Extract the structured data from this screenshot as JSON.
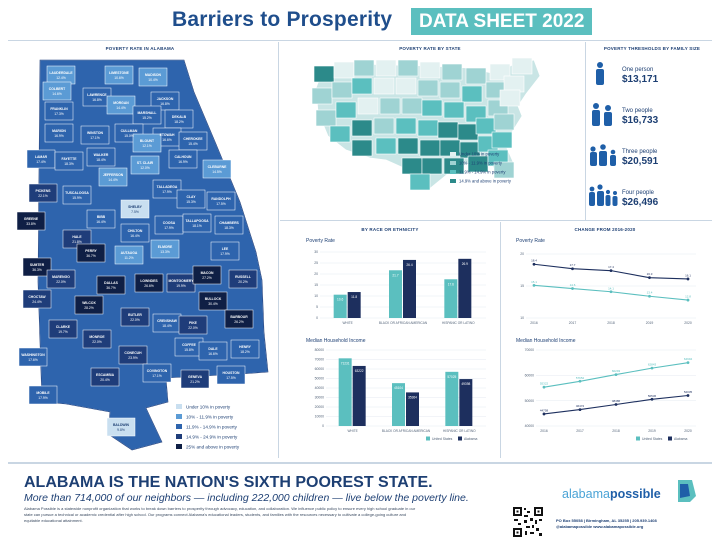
{
  "header": {
    "title": "Barriers to Prosperity",
    "badge": "DATA SHEET 2022"
  },
  "panels": {
    "county_map_title": "POVERTY RATE IN ALABAMA",
    "state_map_title": "POVERTY RATE BY STATE",
    "thresholds_title": "POVERTY THRESHOLDS BY FAMILY SIZE",
    "race_title": "BY RACE OR ETHNICITY",
    "change_title": "CHANGE FROM 2016-2020"
  },
  "legend_alabama": [
    "Under 10% in poverty",
    "10% - 11.9% in poverty",
    "11.9% - 14.9% in poverty",
    "14.9% - 24.9% in poverty",
    "25% and above in poverty"
  ],
  "legend_states": [
    "Under 10% in poverty",
    "10% - 11.9% in poverty",
    "11.9% - 14.9% in poverty",
    "14.9% and above in poverty"
  ],
  "colors": {
    "c1": "#c9dff0",
    "c2": "#5b9bd5",
    "c3": "#2e64ad",
    "c4": "#1f3d7a",
    "c5": "#0f1f45",
    "teal": "#5bbfbf",
    "navy": "#1d2f5e"
  },
  "counties": [
    {
      "n": "LAUDERDALE",
      "v": "12.4%"
    },
    {
      "n": "LIMESTONE",
      "v": "10.6%"
    },
    {
      "n": "MADISON",
      "v": "10.4%"
    },
    {
      "n": "COLBERT",
      "v": "14.6%"
    },
    {
      "n": "LAWRENCE",
      "v": "16.8%"
    },
    {
      "n": "MORGAN",
      "v": "14.4%"
    },
    {
      "n": "JACKSON",
      "v": "16.8%"
    },
    {
      "n": "FRANKLIN",
      "v": "17.3%"
    },
    {
      "n": "MARSHALL",
      "v": "15.2%"
    },
    {
      "n": "DEKALB",
      "v": "18.2%"
    },
    {
      "n": "MARION",
      "v": "16.9%"
    },
    {
      "n": "WINSTON",
      "v": "17.1%"
    },
    {
      "n": "CULLMAN",
      "v": "15.0%"
    },
    {
      "n": "ETOWAH",
      "v": "16.6%"
    },
    {
      "n": "CHEROKEE",
      "v": "15.4%"
    },
    {
      "n": "BLOUNT",
      "v": "12.1%"
    },
    {
      "n": "LAMAR",
      "v": "17.4%"
    },
    {
      "n": "FAYETTE",
      "v": "18.3%"
    },
    {
      "n": "WALKER",
      "v": "18.4%"
    },
    {
      "n": "CALHOUN",
      "v": "16.9%"
    },
    {
      "n": "ST. CLAIR",
      "v": "12.0%"
    },
    {
      "n": "JEFFERSON",
      "v": "14.4%"
    },
    {
      "n": "CLEBURNE",
      "v": "14.5%"
    },
    {
      "n": "PICKENS",
      "v": "22.1%"
    },
    {
      "n": "TUSCALOOSA",
      "v": "15.9%"
    },
    {
      "n": "TALLADEGA",
      "v": "17.9%"
    },
    {
      "n": "CLAY",
      "v": "15.3%"
    },
    {
      "n": "RANDOLPH",
      "v": "17.5%"
    },
    {
      "n": "SHELBY",
      "v": "7.5%"
    },
    {
      "n": "GREENE",
      "v": "33.8%"
    },
    {
      "n": "BIBB",
      "v": "16.4%"
    },
    {
      "n": "COOSA",
      "v": "17.9%"
    },
    {
      "n": "TALLAPOOSA",
      "v": "18.1%"
    },
    {
      "n": "CHAMBERS",
      "v": "18.3%"
    },
    {
      "n": "HALE",
      "v": "21.8%"
    },
    {
      "n": "CHILTON",
      "v": "16.4%"
    },
    {
      "n": "SUMTER",
      "v": "36.3%"
    },
    {
      "n": "PERRY",
      "v": "36.7%"
    },
    {
      "n": "AUTAUGA",
      "v": "11.2%"
    },
    {
      "n": "ELMORE",
      "v": "13.3%"
    },
    {
      "n": "LEE",
      "v": "17.9%"
    },
    {
      "n": "MARENGO",
      "v": "22.0%"
    },
    {
      "n": "DALLAS",
      "v": "36.7%"
    },
    {
      "n": "LOWNDES",
      "v": "26.6%"
    },
    {
      "n": "MONTGOMERY",
      "v": "19.9%"
    },
    {
      "n": "MACON",
      "v": "27.2%"
    },
    {
      "n": "RUSSELL",
      "v": "20.2%"
    },
    {
      "n": "CHOCTAW",
      "v": "24.4%"
    },
    {
      "n": "WILCOX",
      "v": "28.2%"
    },
    {
      "n": "BULLOCK",
      "v": "30.4%"
    },
    {
      "n": "CLARKE",
      "v": "19.7%"
    },
    {
      "n": "BUTLER",
      "v": "22.0%"
    },
    {
      "n": "CRENSHAW",
      "v": "18.4%"
    },
    {
      "n": "PIKE",
      "v": "22.0%"
    },
    {
      "n": "BARBOUR",
      "v": "26.2%"
    },
    {
      "n": "MONROE",
      "v": "22.0%"
    },
    {
      "n": "WASHINGTON",
      "v": "17.6%"
    },
    {
      "n": "CONECUH",
      "v": "23.9%"
    },
    {
      "n": "COFFEE",
      "v": "15.8%"
    },
    {
      "n": "DALE",
      "v": "16.6%"
    },
    {
      "n": "HENRY",
      "v": "18.2%"
    },
    {
      "n": "ESCAMBIA",
      "v": "20.4%"
    },
    {
      "n": "COVINGTON",
      "v": "17.1%"
    },
    {
      "n": "GENEVA",
      "v": "21.2%"
    },
    {
      "n": "HOUSTON",
      "v": "17.5%"
    },
    {
      "n": "MOBILE",
      "v": "17.9%"
    },
    {
      "n": "BALDWIN",
      "v": "9.8%"
    }
  ],
  "thresholds": [
    {
      "label": "One person",
      "value": "$13,171"
    },
    {
      "label": "Two people",
      "value": "$16,733"
    },
    {
      "label": "Three people",
      "value": "$20,591"
    },
    {
      "label": "Four people",
      "value": "$26,496"
    }
  ],
  "chart_data": [
    {
      "type": "bar",
      "title": "Poverty Rate",
      "categories": [
        "WHITE",
        "BLACK OR AFRICAN AMERICAN",
        "HISPANIC OR LATINO"
      ],
      "series": [
        {
          "name": "United States",
          "values": [
            10.6,
            21.7,
            17.6
          ]
        },
        {
          "name": "Alabama",
          "values": [
            11.8,
            26.4,
            26.9
          ]
        }
      ],
      "ylim": [
        0,
        30
      ],
      "yticks": [
        "0",
        "5",
        "10",
        "15",
        "20",
        "25",
        "30"
      ]
    },
    {
      "type": "bar",
      "title": "Median Household Income",
      "categories": [
        "WHITE",
        "BLACK OR AFRICAN AMERICAN",
        "HISPANIC OR LATINO"
      ],
      "series": [
        {
          "name": "United States",
          "values": [
            71231,
            45104,
            57025
          ]
        },
        {
          "name": "Alabama",
          "values": [
            63222,
            35364,
            49398
          ]
        }
      ],
      "ylim": [
        0,
        80000
      ],
      "yticks": [
        "0",
        "10000",
        "20000",
        "30000",
        "40000",
        "50000",
        "60000",
        "70000",
        "80000"
      ],
      "legend": [
        "United States",
        "Alabama"
      ]
    },
    {
      "type": "line",
      "title": "Poverty Rate",
      "x": [
        "2016",
        "2017",
        "2018",
        "2019",
        "2020"
      ],
      "series": [
        {
          "name": "United States",
          "values": [
            15.1,
            14.6,
            14.1,
            13.4,
            12.8
          ]
        },
        {
          "name": "Alabama",
          "values": [
            18.4,
            17.7,
            17.4,
            16.3,
            16.1
          ]
        }
      ],
      "ylim": [
        10,
        20
      ],
      "yticks": [
        "10",
        "15",
        "20"
      ]
    },
    {
      "type": "line",
      "title": "Median Household Income",
      "x": [
        "2016",
        "2017",
        "2018",
        "2019",
        "2020"
      ],
      "series": [
        {
          "name": "United States",
          "values": [
            55322,
            57652,
            60293,
            62843,
            64994
          ]
        },
        {
          "name": "Alabama",
          "values": [
            44758,
            46472,
            48486,
            50536,
            52035
          ]
        }
      ],
      "ylim": [
        40000,
        70000
      ],
      "yticks": [
        "40000",
        "50000",
        "60000",
        "70000"
      ],
      "legend": [
        "United States",
        "Alabama"
      ]
    }
  ],
  "footer": {
    "headline": "ALABAMA IS THE NATION'S SIXTH POOREST STATE.",
    "sub": "More than 714,000 of our neighbors — including 222,000 children — live below the poverty line.",
    "body": "Alabama Possible is a statewide nonprofit organization that works to break down barriers to prosperity through advocacy, education, and collaboration. We influence public policy to ensure every high school graduate in our state can pursue a technical or academic credential after high school. Our programs connect Alabama's educational leaders, students, and families with the resources necessary to cultivate a college-going culture and equitable educational attainment.",
    "logo_a": "alabama",
    "logo_b": "possible",
    "contact_1": "PO Box 55058 | Birmingham, AL 35255 | 205.939.1408",
    "contact_2": "@alabamapossible   www.alabamapossible.org"
  }
}
